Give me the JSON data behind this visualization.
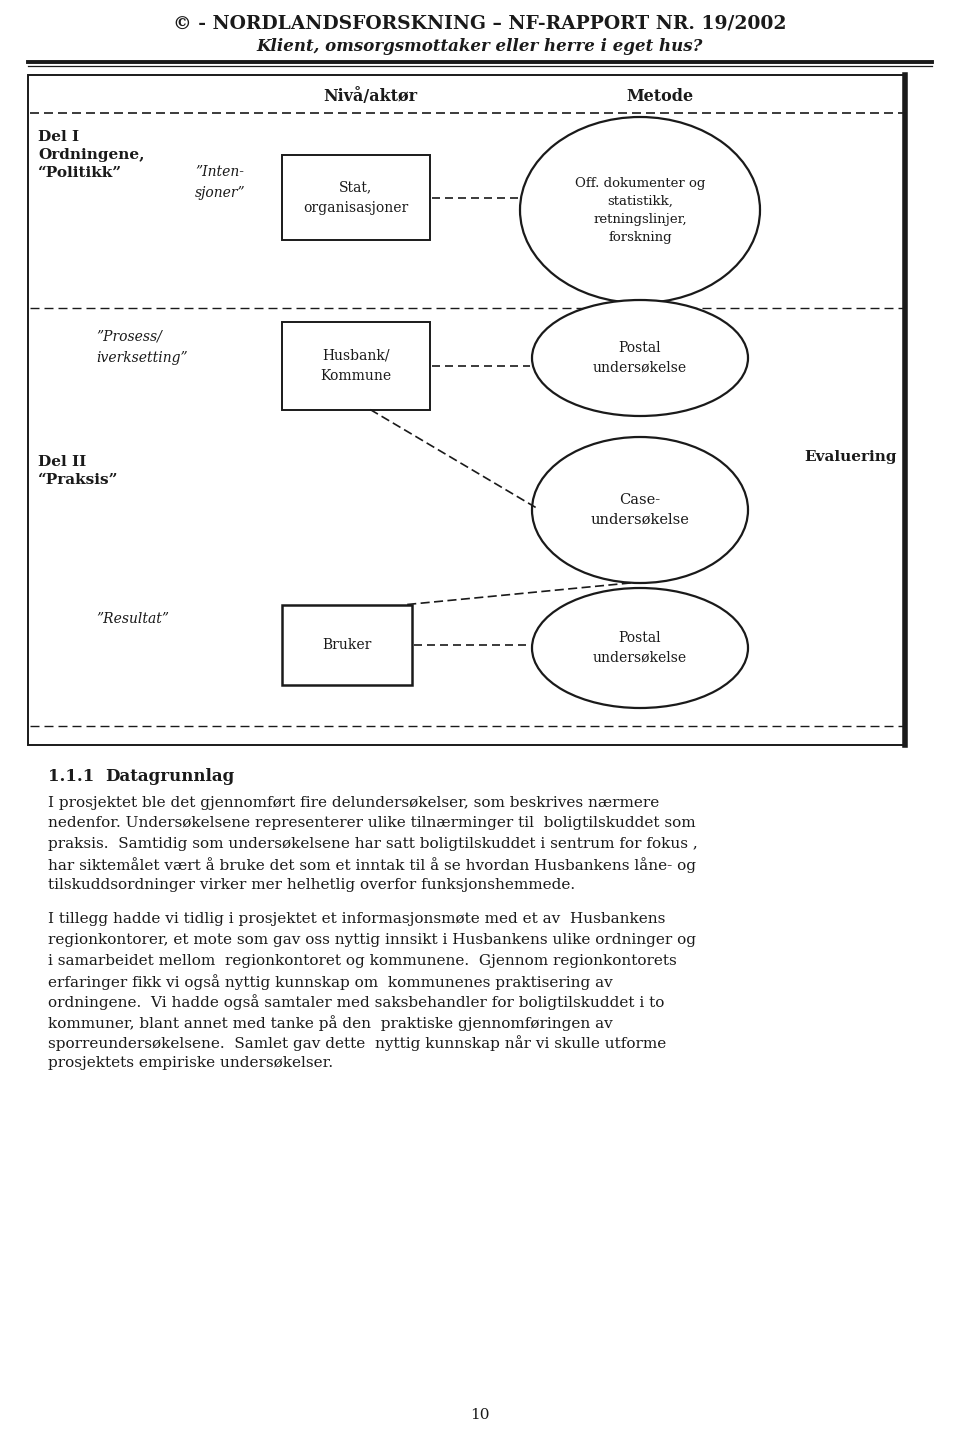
{
  "title_line1": "© - NORDLANDSFORSKNING – NF-RAPPORT NR. 19/2002",
  "title_line2": "Klient, omsorgsmottaker eller herre i eget hus?",
  "header_niva": "Nivå/aktør",
  "header_metode": "Metode",
  "label_del1_line1": "Del I",
  "label_del1_line2": "Ordningene,",
  "label_del1_line3": "“Politikk”",
  "label_del2_line1": "Del II",
  "label_del2_line2": "“Praksis”",
  "label_evaluering": "Evaluering",
  "label_intensjoner": "”Inten-\nsjoner”",
  "label_prosess": "”Prosess/\niverksetting”",
  "label_resultat": "”Resultat”",
  "box1_text": "Stat,\norganisasjoner",
  "box2_text": "Husbank/\nKommune",
  "box3_text": "Bruker",
  "ellipse1_text": "Off. dokumenter og\nstatistikk,\nretningslinjer,\nforskning",
  "ellipse2_text": "Postal\nundersøkelse",
  "ellipse3_text": "Case-\nundersøkelse",
  "ellipse4_text": "Postal\nundersøkelse",
  "section_title": "1.1.1",
  "section_title2": "Datagrunnlag",
  "body_para1_line1": "I prosjektet ble det gjennomført fire delundersøkelser, som beskrives nærmere",
  "body_para1_line2": "nedenfor. Undersøkelsene representerer ulike tilnærminger til  boligtilskuddet som",
  "body_para1_line3": "praksis.  Samtidig som undersøkelsene har satt boligtilskuddet i sentrum for fokus ,",
  "body_para1_line4": "har siktemålet vært å bruke det som et inntak til å se hvordan Husbankens låne- og",
  "body_para1_line5": "tilskuddsordninger virker mer helhetlig overfor funksjonshemmede.",
  "body_para2_line1": "I tillegg hadde vi tidlig i prosjektet et informasjonsmøte med et av  Husbankens",
  "body_para2_line2": "regionkontorer, et mote som gav oss nyttig innsikt i Husbankens ulike ordninger og",
  "body_para2_line3": "i samarbeidet mellom  regionkontoret og kommunene.  Gjennom regionkontorets",
  "body_para2_line4": "erfaringer fikk vi også nyttig kunnskap om  kommunenes praktisering av",
  "body_para2_line5": "ordningene.  Vi hadde også samtaler med saksbehandler for boligtilskuddet i to",
  "body_para2_line6": "kommuner, blant annet med tanke på den  praktiske gjennomføringen av",
  "body_para2_line7": "sporreundersøkelsene.  Samlet gav dette  nyttig kunnskap når vi skulle utforme",
  "body_para2_line8": "prosjektets empiriske undersøkelser.",
  "page_number": "10",
  "bg_color": "#ffffff",
  "text_color": "#1a1a1a"
}
